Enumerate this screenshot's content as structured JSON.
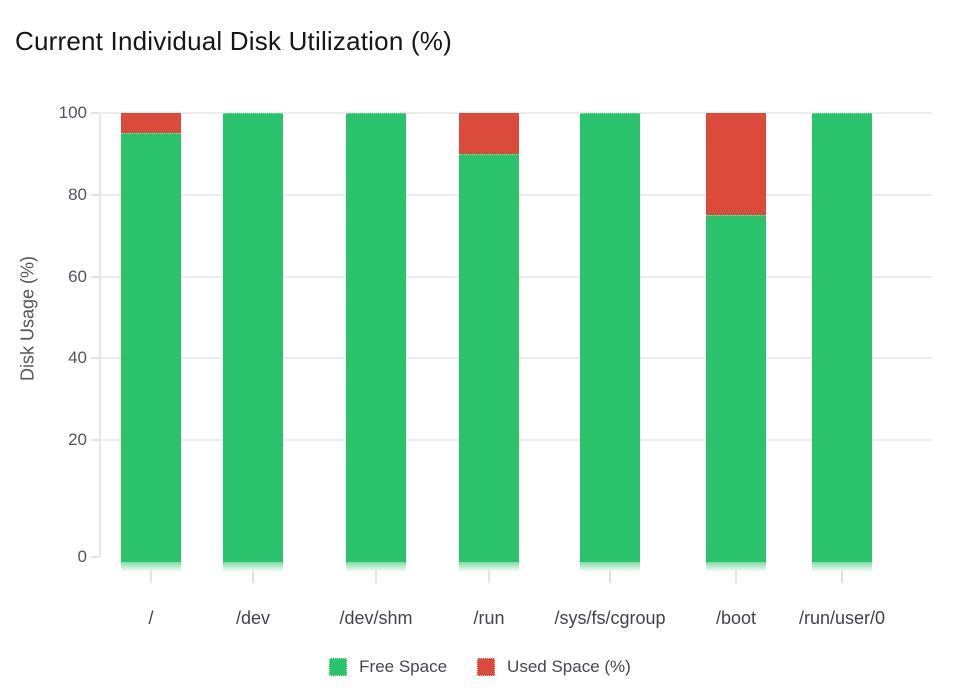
{
  "title": "Current Individual Disk Utilization (%)",
  "chart_data": {
    "type": "bar",
    "stacked": true,
    "title": "Current Individual Disk Utilization (%)",
    "categories": [
      "/",
      "/dev",
      "/dev/shm",
      "/run",
      "/sys/fs/cgroup",
      "/boot",
      "/run/user/0"
    ],
    "series": [
      {
        "name": "Free Space",
        "color": "#2bc46d",
        "values": [
          95,
          100,
          100,
          90,
          100,
          75,
          100
        ]
      },
      {
        "name": "Used Space (%)",
        "color": "#da4b3c",
        "values": [
          5,
          0,
          0,
          10,
          0,
          25,
          0
        ]
      }
    ],
    "xlabel": "",
    "ylabel": "Disk Usage (%)",
    "ylim": [
      0,
      100
    ],
    "yticks": [
      0,
      20,
      40,
      60,
      80,
      100
    ],
    "grid": true,
    "legend_position": "bottom"
  },
  "colors": {
    "free": "#2bc46d",
    "used": "#da4b3c",
    "grid": "#ededed",
    "axis": "#e7e7e7",
    "tick_text": "#55555e",
    "category_text": "#43434d",
    "title_text": "#161619"
  }
}
